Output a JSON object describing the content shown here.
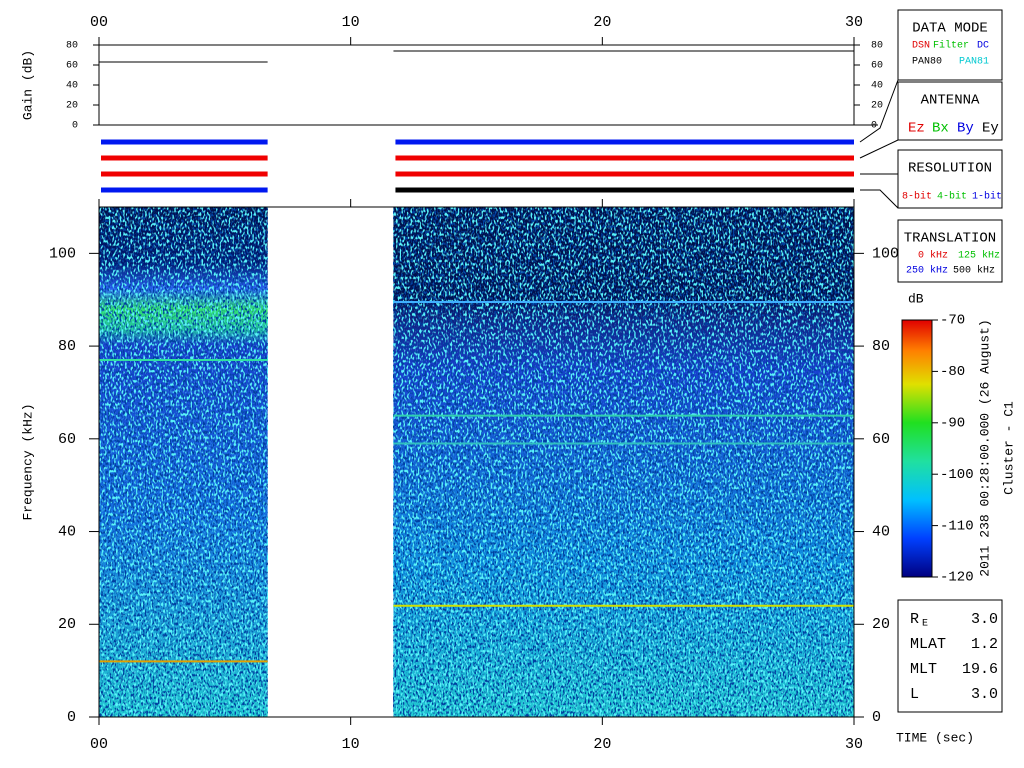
{
  "chart_data": {
    "type": "spectrogram",
    "xlabel": "TIME (sec)",
    "xlim": [
      0,
      30
    ],
    "xticks": [
      {
        "value": 0,
        "label": "00"
      },
      10,
      20,
      30
    ],
    "gain": {
      "ylabel": "Gain (dB)",
      "ylim": [
        0,
        80
      ],
      "yticks": [
        0,
        20,
        40,
        60,
        80
      ],
      "segments": [
        {
          "x": [
            0,
            6.7
          ],
          "value": 63
        },
        {
          "x": [
            11.7,
            30
          ],
          "value": 74
        }
      ]
    },
    "modes": [
      {
        "x": [
          0,
          6.7
        ],
        "colors": [
          "#0018f0",
          "#f00000",
          "#f00000",
          "#0018f0"
        ]
      },
      {
        "x": [
          11.7,
          30
        ],
        "colors": [
          "#0018f0",
          "#f00000",
          "#f00000",
          "#000000"
        ]
      }
    ],
    "spectrogram": {
      "ylabel": "Frequency (kHz)",
      "ylim": [
        0,
        110
      ],
      "yticks": [
        0,
        20,
        40,
        60,
        80,
        100
      ],
      "segments": [
        {
          "x": [
            0,
            6.7
          ]
        },
        {
          "x": [
            11.7,
            30
          ]
        }
      ],
      "lines": [
        {
          "x": [
            0,
            6.7
          ],
          "freq": 77,
          "color": "#30e0a0"
        },
        {
          "x": [
            0,
            6.7
          ],
          "freq": 12,
          "color": "#e0a000"
        },
        {
          "x": [
            11.7,
            30
          ],
          "freq": 89.5,
          "color": "#40b0ff"
        },
        {
          "x": [
            11.7,
            30
          ],
          "freq": 65,
          "color": "#30d0b0"
        },
        {
          "x": [
            11.7,
            30
          ],
          "freq": 59,
          "color": "#30c0c0"
        },
        {
          "x": [
            11.7,
            30
          ],
          "freq": 24,
          "color": "#d0e000"
        }
      ]
    },
    "colorbar": {
      "label": "dB",
      "lim": [
        -120,
        -70
      ],
      "ticks": [
        -70,
        -80,
        -90,
        -100,
        -110,
        -120
      ]
    }
  },
  "boxes": [
    {
      "title": "DATA MODE",
      "items": [
        {
          "text": "DSN",
          "color": "#e00000"
        },
        {
          "text": "Filter",
          "color": "#00c000"
        },
        {
          "text": "DC",
          "color": "#0000e0"
        },
        {
          "text": "PAN80",
          "color": "#000000"
        },
        {
          "text": "PAN81",
          "color": "#00c8d0"
        }
      ]
    },
    {
      "title": "ANTENNA",
      "items": [
        {
          "text": "Ez",
          "color": "#e00000"
        },
        {
          "text": "Bx",
          "color": "#00c000"
        },
        {
          "text": "By",
          "color": "#0000e0"
        },
        {
          "text": "Ey",
          "color": "#000000"
        }
      ]
    },
    {
      "title": "RESOLUTION",
      "items": [
        {
          "text": "8-bit",
          "color": "#e00000"
        },
        {
          "text": "4-bit",
          "color": "#00c000"
        },
        {
          "text": "1-bit",
          "color": "#0000e0"
        }
      ]
    },
    {
      "title": "TRANSLATION",
      "items": [
        {
          "text": "0 kHz",
          "color": "#e00000"
        },
        {
          "text": "125 kHz",
          "color": "#00c000"
        },
        {
          "text": "250 kHz",
          "color": "#0000e0"
        },
        {
          "text": "500 kHz",
          "color": "#000000"
        }
      ]
    }
  ],
  "stamp": [
    "2011 238 00:28:00.000 (26 August)",
    "Cluster - C1"
  ],
  "info": [
    {
      "label": "R",
      "sub": "E",
      "value": "3.0"
    },
    {
      "label": "MLAT",
      "value": "1.2"
    },
    {
      "label": "MLT",
      "value": "19.6"
    },
    {
      "label": "L",
      "value": "3.0"
    }
  ]
}
